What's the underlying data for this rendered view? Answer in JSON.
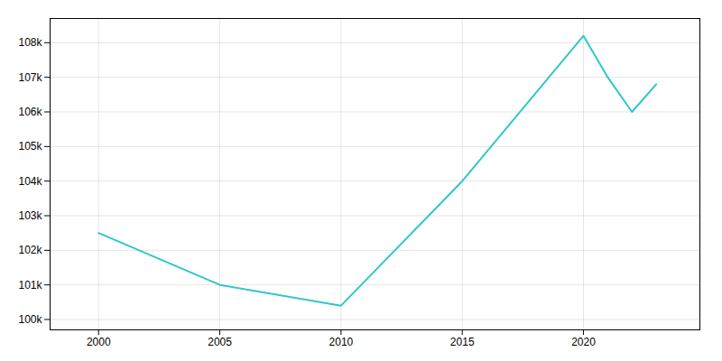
{
  "chart_data": {
    "type": "line",
    "x": [
      2000,
      2005,
      2010,
      2015,
      2020,
      2021,
      2022,
      2023
    ],
    "values": [
      102500,
      101000,
      100400,
      104000,
      108200,
      107000,
      106000,
      106800
    ],
    "color": "#2EC8C8",
    "xlim": [
      1998.0,
      2024.8
    ],
    "xticks": [
      2000,
      2005,
      2010,
      2015,
      2020
    ],
    "ylim": [
      99700,
      108700
    ],
    "yticks": [
      {
        "value": 100000,
        "label": "100k"
      },
      {
        "value": 101000,
        "label": "101k"
      },
      {
        "value": 102000,
        "label": "102k"
      },
      {
        "value": 103000,
        "label": "103k"
      },
      {
        "value": 104000,
        "label": "104k"
      },
      {
        "value": 105000,
        "label": "105k"
      },
      {
        "value": 106000,
        "label": "106k"
      },
      {
        "value": 107000,
        "label": "107k"
      },
      {
        "value": 108000,
        "label": "108k"
      }
    ],
    "grid": true
  }
}
